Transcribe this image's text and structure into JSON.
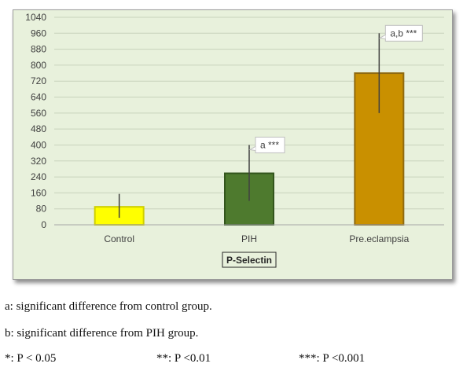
{
  "chart_data": {
    "type": "bar",
    "categories": [
      "Control",
      "PIH",
      "Pre.eclampsia"
    ],
    "values": [
      90,
      258,
      760
    ],
    "error_low": [
      35,
      120,
      560
    ],
    "error_high": [
      155,
      400,
      960
    ],
    "colors": [
      "#ffff00",
      "#4e7a2e",
      "#c99000"
    ],
    "edge_colors": [
      "#cfcf00",
      "#33551d",
      "#8f6a10"
    ],
    "annotations": [
      null,
      "a ***",
      "a,b ***"
    ],
    "xlabel": "P-Selectin",
    "ylabel": "",
    "ylim": [
      0,
      1040
    ],
    "yticks": [
      0,
      80,
      160,
      240,
      320,
      400,
      480,
      560,
      640,
      720,
      800,
      880,
      960,
      1040
    ],
    "grid": true,
    "legend": "none"
  },
  "footnotes": {
    "a": "a: significant difference from control group.",
    "b": "b: significant difference from PIH group.",
    "sig1": "*: P < 0.05",
    "sig2": "**: P <0.01",
    "sig3": "***: P <0.001"
  },
  "colors": {
    "panel_background": "#e8f1dc",
    "gridline": "#c8d2bc",
    "axis": "#a6a6a6",
    "error_bar": "#404040"
  }
}
